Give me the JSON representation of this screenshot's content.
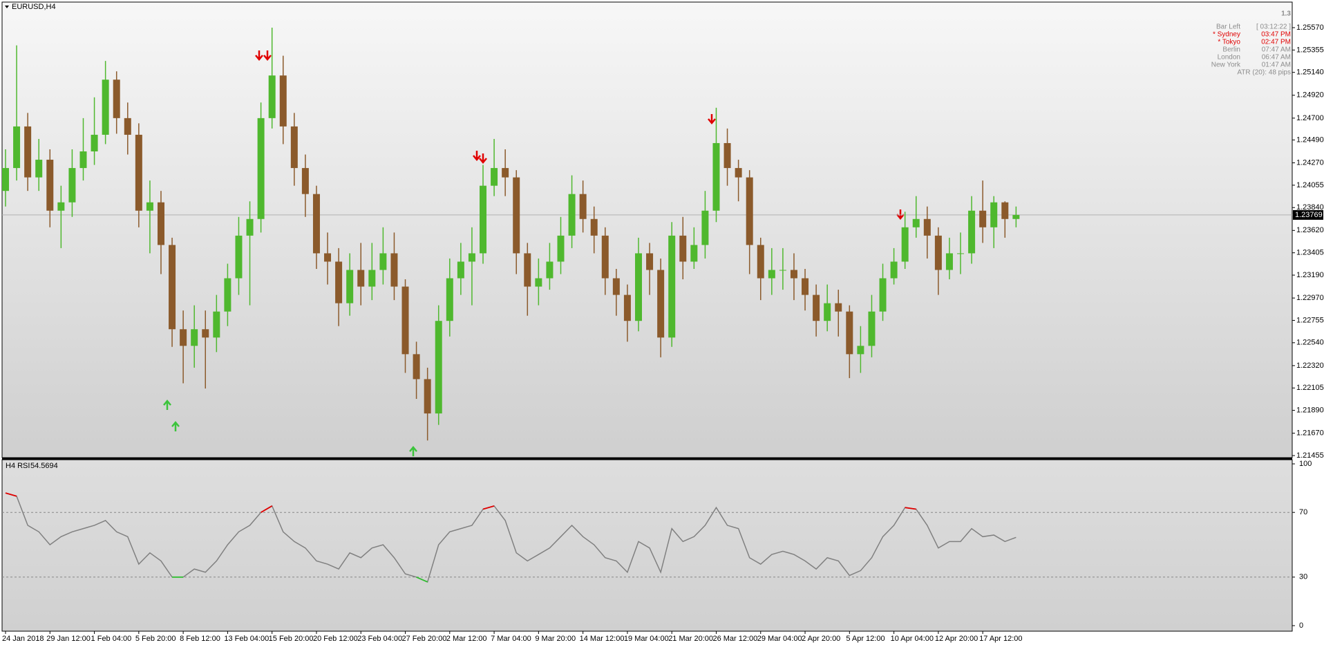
{
  "header": {
    "symbol": "EURUSD,H4",
    "big_value": "1.3"
  },
  "info": {
    "rows": [
      [
        "Bar Left",
        "[ 03:12:22 ]"
      ],
      [
        "* Sydney",
        "03:47 PM"
      ],
      [
        "* Tokyo",
        "02:47 PM"
      ],
      [
        "Berlin",
        "07:47 AM"
      ],
      [
        "London",
        "06:47 AM"
      ],
      [
        "New York",
        "01:47 AM"
      ]
    ],
    "atr": "ATR (20): 48 pips"
  },
  "chart_data": [
    {
      "type": "candlestick",
      "up_color": "#4fb82e",
      "down_color": "#8b5a2b",
      "categories": [
        "24 Jan 2018",
        null,
        null,
        null,
        "29 Jan 12:00",
        null,
        null,
        null,
        "1 Feb 04:00",
        null,
        null,
        null,
        "5 Feb 20:00",
        null,
        null,
        null,
        "8 Feb 12:00",
        null,
        null,
        null,
        "13 Feb 04:00",
        null,
        null,
        null,
        "15 Feb 20:00",
        null,
        null,
        null,
        "20 Feb 12:00",
        null,
        null,
        null,
        "23 Feb 04:00",
        null,
        null,
        null,
        "27 Feb 20:00",
        null,
        null,
        null,
        "2 Mar 12:00",
        null,
        null,
        null,
        "7 Mar 04:00",
        null,
        null,
        null,
        "9 Mar 20:00",
        null,
        null,
        null,
        "14 Mar 12:00",
        null,
        null,
        null,
        "19 Mar 04:00",
        null,
        null,
        null,
        "21 Mar 20:00",
        null,
        null,
        null,
        "26 Mar 12:00",
        null,
        null,
        null,
        "29 Mar 04:00",
        null,
        null,
        null,
        "2 Apr 20:00",
        null,
        null,
        null,
        "5 Apr 12:00",
        null,
        null,
        null,
        "10 Apr 04:00",
        null,
        null,
        null,
        "12 Apr 20:00",
        null,
        null,
        null,
        "17 Apr 12:00",
        null,
        null,
        null
      ],
      "open": [
        1.24,
        1.2422,
        1.2462,
        1.2413,
        1.243,
        1.2381,
        1.2389,
        1.2422,
        1.2438,
        1.2454,
        1.2507,
        1.247,
        1.2454,
        1.2381,
        1.2389,
        1.2348,
        1.2267,
        1.2251,
        1.2267,
        1.2259,
        1.2284,
        1.2316,
        1.2357,
        1.2373,
        1.247,
        1.2511,
        1.2462,
        1.2422,
        1.2397,
        1.234,
        1.2332,
        1.2292,
        1.2324,
        1.2308,
        1.2324,
        1.234,
        1.2308,
        1.2243,
        1.2219,
        1.2186,
        1.2275,
        1.2316,
        1.2332,
        1.234,
        1.2405,
        1.2422,
        1.2413,
        1.234,
        1.2308,
        1.2316,
        1.2332,
        1.2357,
        1.2397,
        1.2373,
        1.2357,
        1.2316,
        1.23,
        1.2275,
        1.234,
        1.2324,
        1.2259,
        1.2357,
        1.2332,
        1.2348,
        1.2381,
        1.2446,
        1.2422,
        1.2413,
        1.2348,
        1.2316,
        1.2324,
        1.2324,
        1.2316,
        1.23,
        1.2275,
        1.2292,
        1.2284,
        1.2243,
        1.2251,
        1.2284,
        1.2316,
        1.2332,
        1.2365,
        1.2373,
        1.2357,
        1.2324,
        1.234,
        1.234,
        1.2381,
        1.2365,
        1.2389,
        1.2373
      ],
      "high": [
        1.244,
        1.254,
        1.2475,
        1.245,
        1.244,
        1.2405,
        1.244,
        1.247,
        1.249,
        1.2525,
        1.2515,
        1.2485,
        1.2465,
        1.241,
        1.24,
        1.2355,
        1.2285,
        1.229,
        1.2285,
        1.23,
        1.233,
        1.2375,
        1.239,
        1.2485,
        1.2557,
        1.253,
        1.2475,
        1.2435,
        1.2405,
        1.236,
        1.2345,
        1.234,
        1.235,
        1.235,
        1.2365,
        1.236,
        1.2315,
        1.2255,
        1.223,
        1.229,
        1.2335,
        1.235,
        1.2365,
        1.2425,
        1.245,
        1.244,
        1.242,
        1.235,
        1.2335,
        1.235,
        1.2375,
        1.2415,
        1.241,
        1.2385,
        1.2365,
        1.2325,
        1.231,
        1.2355,
        1.235,
        1.2335,
        1.237,
        1.2375,
        1.2365,
        1.24,
        1.248,
        1.246,
        1.243,
        1.242,
        1.2355,
        1.2345,
        1.2345,
        1.234,
        1.2325,
        1.231,
        1.231,
        1.2305,
        1.229,
        1.227,
        1.23,
        1.233,
        1.2345,
        1.238,
        1.2395,
        1.2385,
        1.2365,
        1.2355,
        1.236,
        1.2395,
        1.241,
        1.2395,
        1.239,
        1.2385
      ],
      "low": [
        1.2385,
        1.241,
        1.24,
        1.24,
        1.2365,
        1.2345,
        1.2375,
        1.241,
        1.2425,
        1.2445,
        1.2455,
        1.2435,
        1.2365,
        1.234,
        1.232,
        1.225,
        1.2215,
        1.223,
        1.221,
        1.2245,
        1.227,
        1.23,
        1.229,
        1.236,
        1.246,
        1.2445,
        1.2405,
        1.2375,
        1.2325,
        1.231,
        1.227,
        1.228,
        1.229,
        1.2295,
        1.231,
        1.2295,
        1.2225,
        1.22,
        1.216,
        1.2175,
        1.226,
        1.23,
        1.229,
        1.233,
        1.2395,
        1.2395,
        1.232,
        1.228,
        1.229,
        1.2305,
        1.232,
        1.2345,
        1.236,
        1.234,
        1.23,
        1.228,
        1.2255,
        1.2265,
        1.23,
        1.224,
        1.225,
        1.2315,
        1.2325,
        1.2335,
        1.237,
        1.2405,
        1.239,
        1.232,
        1.2295,
        1.23,
        1.2305,
        1.2295,
        1.2285,
        1.226,
        1.2265,
        1.226,
        1.222,
        1.2225,
        1.224,
        1.2275,
        1.231,
        1.2325,
        1.2355,
        1.2335,
        1.23,
        1.2315,
        1.232,
        1.233,
        1.235,
        1.2345,
        1.2355,
        1.2365
      ],
      "close": [
        1.2422,
        1.2462,
        1.2413,
        1.243,
        1.2381,
        1.2389,
        1.2422,
        1.2438,
        1.2454,
        1.2507,
        1.247,
        1.2454,
        1.2381,
        1.2389,
        1.2348,
        1.2267,
        1.2251,
        1.2267,
        1.2259,
        1.2284,
        1.2316,
        1.2357,
        1.2373,
        1.247,
        1.2511,
        1.2462,
        1.2422,
        1.2397,
        1.234,
        1.2332,
        1.2292,
        1.2324,
        1.2308,
        1.2324,
        1.234,
        1.2308,
        1.2243,
        1.2219,
        1.2186,
        1.2275,
        1.2316,
        1.2332,
        1.234,
        1.2405,
        1.2422,
        1.2413,
        1.234,
        1.2308,
        1.2316,
        1.2332,
        1.2357,
        1.2397,
        1.2373,
        1.2357,
        1.2316,
        1.23,
        1.2275,
        1.234,
        1.2324,
        1.2259,
        1.2357,
        1.2332,
        1.2348,
        1.2381,
        1.2446,
        1.2422,
        1.2413,
        1.2348,
        1.2316,
        1.2324,
        1.2324,
        1.2316,
        1.23,
        1.2275,
        1.2292,
        1.2284,
        1.2243,
        1.2251,
        1.2284,
        1.2316,
        1.2332,
        1.2365,
        1.2373,
        1.2357,
        1.2324,
        1.234,
        1.234,
        1.2381,
        1.2365,
        1.2389,
        1.2373,
        1.23769
      ],
      "ylim": [
        1.21435,
        1.25816
      ],
      "yticks": [
        {
          "value": 1.2557,
          "label": "1.25570"
        },
        1.25355,
        {
          "value": 1.2514,
          "label": "1.25140"
        },
        {
          "value": 1.2492,
          "label": "1.24920"
        },
        {
          "value": 1.247,
          "label": "1.24700"
        },
        {
          "value": 1.2449,
          "label": "1.24490"
        },
        {
          "value": 1.2427,
          "label": "1.24270"
        },
        1.24055,
        {
          "value": 1.2384,
          "label": "1.23840"
        },
        {
          "value": 1.2362,
          "label": "1.23620"
        },
        1.23405,
        {
          "value": 1.2319,
          "label": "1.23190"
        },
        {
          "value": 1.2297,
          "label": "1.22970"
        },
        1.22755,
        {
          "value": 1.2254,
          "label": "1.22540"
        },
        {
          "value": 1.2232,
          "label": "1.22320"
        },
        1.22105,
        {
          "value": 1.2189,
          "label": "1.21890"
        },
        {
          "value": 1.2167,
          "label": "1.21670"
        },
        1.21455
      ]
    },
    {
      "type": "line",
      "title": "H4 RSI",
      "color": "#808080",
      "high_color": "#e00000",
      "low_color": "#2fbf2f",
      "values": [
        82,
        80,
        62,
        58,
        50,
        55,
        58,
        60,
        62,
        65,
        58,
        55,
        38,
        45,
        40,
        30,
        30,
        35,
        33,
        40,
        50,
        58,
        62,
        70,
        74,
        58,
        52,
        48,
        40,
        38,
        35,
        45,
        42,
        48,
        50,
        42,
        32,
        30,
        27,
        50,
        58,
        60,
        62,
        72,
        74,
        65,
        45,
        40,
        44,
        48,
        55,
        62,
        55,
        50,
        42,
        40,
        33,
        52,
        48,
        33,
        60,
        52,
        55,
        62,
        73,
        62,
        60,
        42,
        38,
        44,
        46,
        44,
        40,
        35,
        42,
        40,
        31,
        34,
        42,
        55,
        62,
        73,
        72,
        62,
        48,
        52,
        52,
        60,
        55,
        56,
        52,
        54.5694
      ],
      "ylim": [
        0,
        100
      ],
      "yticks": [
        100,
        70,
        30,
        0
      ]
    }
  ]
}
